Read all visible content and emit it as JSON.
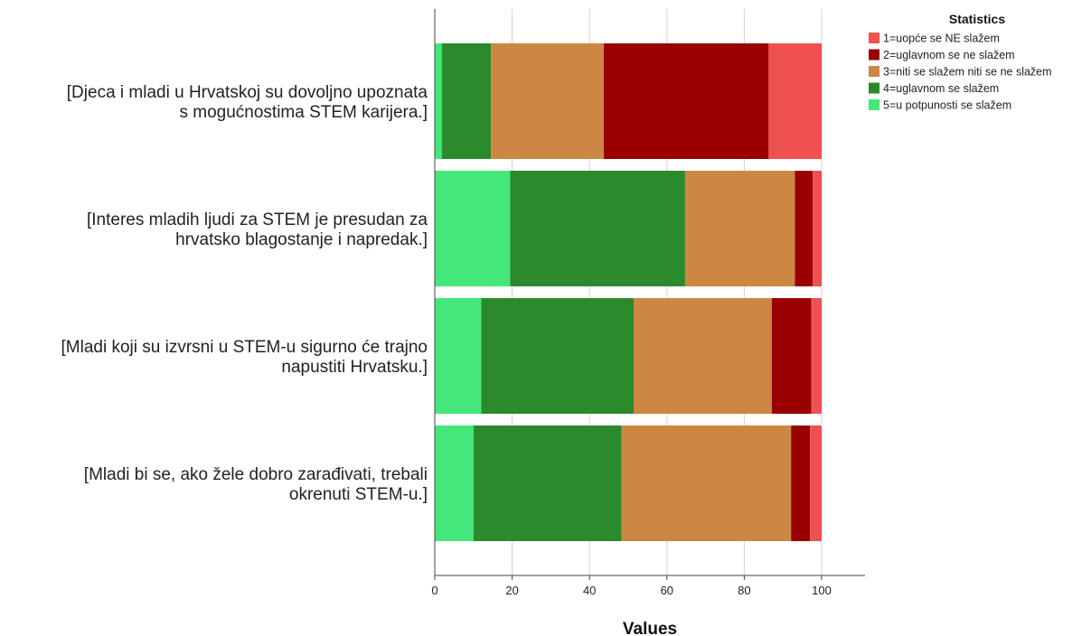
{
  "chart_data": {
    "type": "bar",
    "orientation": "horizontal",
    "stacked": true,
    "xlabel": "Values",
    "xlim": [
      0,
      100
    ],
    "x_ticks": [
      0,
      20,
      40,
      60,
      80,
      100
    ],
    "grid": "vertical",
    "legend": {
      "title": "Statistics",
      "position": "top-right"
    },
    "categories": [
      [
        "[Djeca i mladi u Hrvatskoj su dovoljno upoznata",
        "s mogućnostima STEM karijera.]"
      ],
      [
        "[Interes mladih ljudi za STEM je presudan za",
        "hrvatsko blagostanje i napredak.]"
      ],
      [
        "[Mladi koji su izvrsni u STEM-u sigurno će trajno",
        "napustiti Hrvatsku.]"
      ],
      [
        "[Mladi bi se, ako žele dobro zarađivati, trebali",
        "okrenuti STEM-u.]"
      ]
    ],
    "series": [
      {
        "name": "5=u potpunosti se slažem",
        "color": "#44e87a",
        "values": [
          1.8,
          19.5,
          12.0,
          10.0
        ]
      },
      {
        "name": "4=uglavnom se slažem",
        "color": "#2b8a2b",
        "values": [
          12.7,
          45.2,
          39.4,
          38.3
        ]
      },
      {
        "name": "3=niti se slažem niti se ne slažem",
        "color": "#cc8842",
        "values": [
          29.2,
          28.4,
          35.7,
          43.8
        ]
      },
      {
        "name": "2=uglavnom se ne slažem",
        "color": "#990000",
        "values": [
          42.6,
          4.6,
          10.2,
          4.9
        ]
      },
      {
        "name": "1=uopće se NE slažem",
        "color": "#ef5050",
        "values": [
          13.7,
          2.3,
          2.7,
          3.0
        ]
      }
    ],
    "legend_order": [
      "1=uopće se NE slažem",
      "2=uglavnom se ne slažem",
      "3=niti se slažem niti se ne slažem",
      "4=uglavnom se slažem",
      "5=u potpunosti se slažem"
    ]
  }
}
